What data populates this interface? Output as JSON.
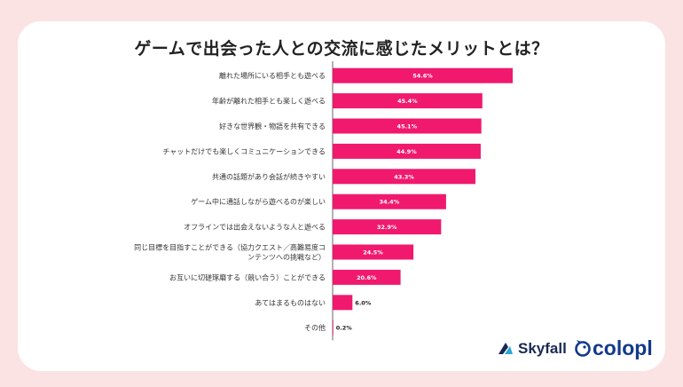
{
  "colors": {
    "background": "#fbe3e3",
    "bar": "#f0196e",
    "axis": "#666666"
  },
  "chart_data": {
    "type": "bar",
    "orientation": "horizontal",
    "title": "ゲームで出会った人との交流に感じたメリットとは？",
    "categories": [
      [
        "離れた場所にいる相手とも遊べる"
      ],
      [
        "年齢が離れた相手とも楽しく遊べる"
      ],
      [
        "好きな世界観・物語を共有できる"
      ],
      [
        "チャットだけでも楽しくコミュニケーションできる"
      ],
      [
        "共通の話題があり会話が続きやすい"
      ],
      [
        "ゲーム中に通話しながら遊べるのが楽しい"
      ],
      [
        "オフラインでは出会えないような人と遊べる"
      ],
      [
        "同じ目標を目指すことができる（協力クエスト／高難易度コ",
        "ンテンツへの挑戦など）"
      ],
      [
        "お互いに切磋琢磨する（競い合う）ことができる"
      ],
      [
        "あてはまるものはない"
      ],
      [
        "その他"
      ]
    ],
    "values": [
      54.6,
      45.4,
      45.1,
      44.9,
      43.3,
      34.4,
      32.9,
      24.5,
      20.6,
      6.0,
      0.2
    ],
    "value_labels": [
      "54.6%",
      "45.4%",
      "45.1%",
      "44.9%",
      "43.3%",
      "34.4%",
      "32.9%",
      "24.5%",
      "20.6%",
      "6.0%",
      "0.2%"
    ],
    "xlim": [
      0,
      60
    ],
    "grid": false,
    "legend": "none"
  },
  "logos": {
    "skyfall": "Skyfall",
    "colopl": "colopl"
  }
}
